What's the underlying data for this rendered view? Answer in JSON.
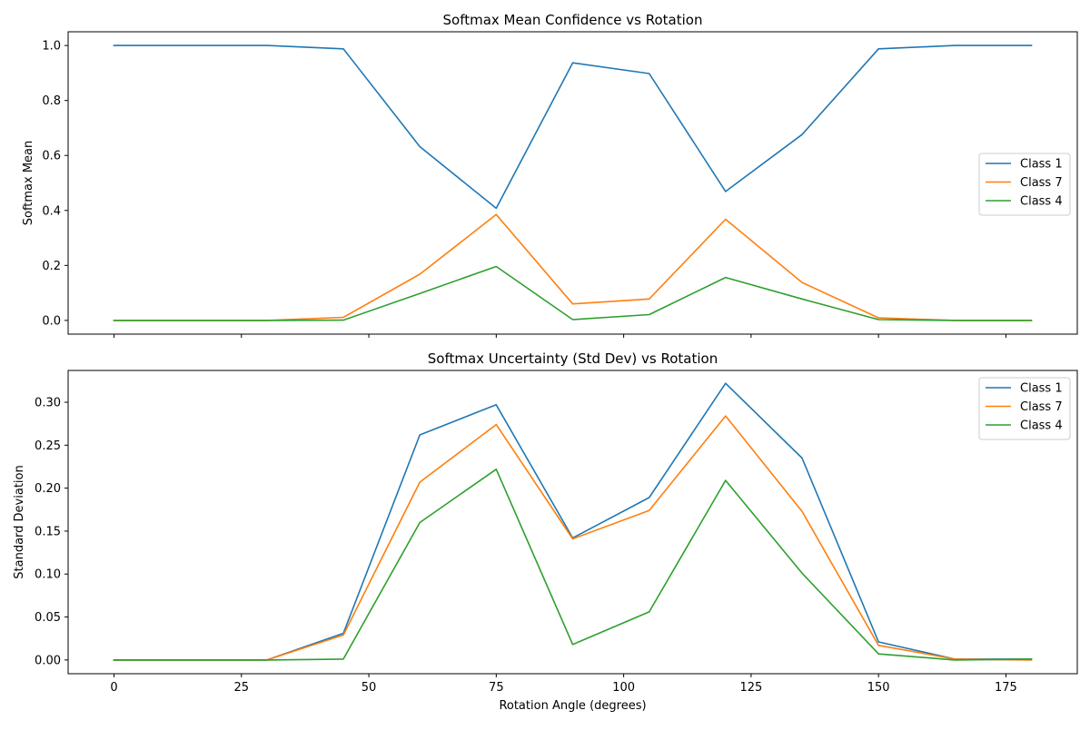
{
  "chart_data": [
    {
      "type": "line",
      "title": "Softmax Mean Confidence vs Rotation",
      "xlabel": "",
      "ylabel": "Softmax Mean",
      "x": [
        0,
        15,
        30,
        45,
        60,
        75,
        90,
        105,
        120,
        135,
        150,
        165,
        180
      ],
      "xlim": [
        -9,
        189
      ],
      "ylim": [
        -0.05,
        1.05
      ],
      "xticks": [
        0,
        25,
        50,
        75,
        100,
        125,
        150,
        175
      ],
      "xtick_labels_visible": false,
      "yticks": [
        0.0,
        0.2,
        0.4,
        0.6,
        0.8,
        1.0
      ],
      "ytick_labels": [
        "0.0",
        "0.2",
        "0.4",
        "0.6",
        "0.8",
        "1.0"
      ],
      "legend_position": "center-right",
      "grid": false,
      "series": [
        {
          "name": "Class 1",
          "color": "#1f77b4",
          "values": [
            1.0,
            1.0,
            1.0,
            0.988,
            0.632,
            0.408,
            0.937,
            0.898,
            0.469,
            0.676,
            0.988,
            1.0,
            1.0
          ]
        },
        {
          "name": "Class 7",
          "color": "#ff7f0e",
          "values": [
            0.0,
            0.0,
            0.0,
            0.011,
            0.168,
            0.385,
            0.06,
            0.078,
            0.368,
            0.138,
            0.009,
            0.0,
            0.0
          ]
        },
        {
          "name": "Class 4",
          "color": "#2ca02c",
          "values": [
            0.0,
            0.0,
            0.0,
            0.001,
            0.098,
            0.196,
            0.003,
            0.021,
            0.156,
            0.078,
            0.003,
            0.0,
            0.0
          ]
        }
      ]
    },
    {
      "type": "line",
      "title": "Softmax Uncertainty (Std Dev) vs Rotation",
      "xlabel": "Rotation Angle (degrees)",
      "ylabel": "Standard Deviation",
      "x": [
        0,
        15,
        30,
        45,
        60,
        75,
        90,
        105,
        120,
        135,
        150,
        165,
        180
      ],
      "xlim": [
        -9,
        189
      ],
      "ylim": [
        -0.016,
        0.337
      ],
      "xticks": [
        0,
        25,
        50,
        75,
        100,
        125,
        150,
        175
      ],
      "xtick_labels": [
        "0",
        "25",
        "50",
        "75",
        "100",
        "125",
        "150",
        "175"
      ],
      "xtick_labels_visible": true,
      "yticks": [
        0.0,
        0.05,
        0.1,
        0.15,
        0.2,
        0.25,
        0.3
      ],
      "ytick_labels": [
        "0.00",
        "0.05",
        "0.10",
        "0.15",
        "0.20",
        "0.25",
        "0.30"
      ],
      "legend_position": "top-right",
      "grid": false,
      "series": [
        {
          "name": "Class 1",
          "color": "#1f77b4",
          "values": [
            0.0,
            0.0,
            0.0,
            0.031,
            0.262,
            0.297,
            0.142,
            0.189,
            0.322,
            0.235,
            0.021,
            0.001,
            0.001
          ]
        },
        {
          "name": "Class 7",
          "color": "#ff7f0e",
          "values": [
            0.0,
            0.0,
            0.0,
            0.029,
            0.207,
            0.274,
            0.141,
            0.174,
            0.284,
            0.173,
            0.017,
            0.001,
            0.0
          ]
        },
        {
          "name": "Class 4",
          "color": "#2ca02c",
          "values": [
            0.0,
            0.0,
            0.0,
            0.001,
            0.16,
            0.222,
            0.018,
            0.056,
            0.209,
            0.101,
            0.007,
            0.0,
            0.001
          ]
        }
      ]
    }
  ]
}
